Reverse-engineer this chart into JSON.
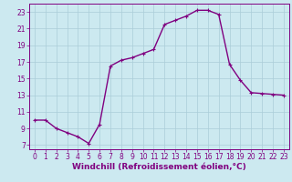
{
  "x": [
    0,
    1,
    2,
    3,
    4,
    5,
    6,
    7,
    8,
    9,
    10,
    11,
    12,
    13,
    14,
    15,
    16,
    17,
    18,
    19,
    20,
    21,
    22,
    23
  ],
  "y": [
    10,
    10,
    9,
    8.5,
    8,
    7.2,
    9.5,
    16.5,
    17.2,
    17.5,
    18,
    18.5,
    21.5,
    22,
    22.5,
    23.2,
    23.2,
    22.7,
    16.7,
    14.8,
    13.3,
    13.2,
    13.1,
    13.0
  ],
  "line_color": "#800080",
  "marker": "+",
  "bg_color": "#cce9f0",
  "grid_color": "#aacdd8",
  "xlabel": "Windchill (Refroidissement éolien,°C)",
  "xlim": [
    -0.5,
    23.5
  ],
  "ylim": [
    6.5,
    24
  ],
  "yticks": [
    7,
    9,
    11,
    13,
    15,
    17,
    19,
    21,
    23
  ],
  "xticks": [
    0,
    1,
    2,
    3,
    4,
    5,
    6,
    7,
    8,
    9,
    10,
    11,
    12,
    13,
    14,
    15,
    16,
    17,
    18,
    19,
    20,
    21,
    22,
    23
  ],
  "tick_fontsize": 5.5,
  "xlabel_fontsize": 6.5,
  "linewidth": 1.0,
  "marker_size": 3.5,
  "marker_ew": 0.8
}
